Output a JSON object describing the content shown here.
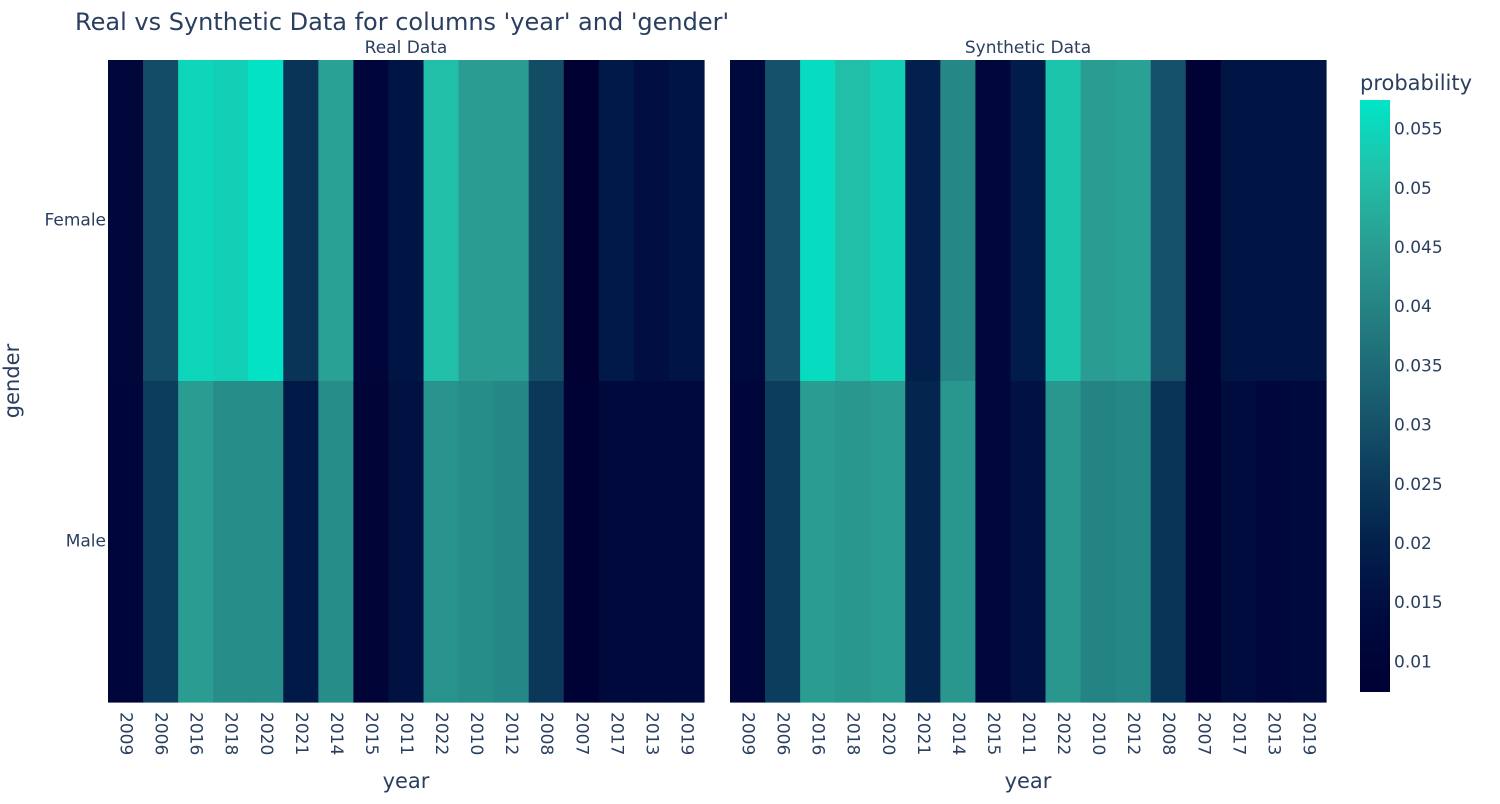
{
  "chart_data": {
    "type": "heatmap",
    "title": "Real vs Synthetic Data for columns 'year' and 'gender'",
    "xlabel": "year",
    "ylabel": "gender",
    "x": [
      "2009",
      "2006",
      "2016",
      "2018",
      "2020",
      "2021",
      "2014",
      "2015",
      "2011",
      "2022",
      "2010",
      "2012",
      "2008",
      "2007",
      "2017",
      "2013",
      "2019"
    ],
    "y": [
      "Female",
      "Male"
    ],
    "colorbar": {
      "title": "probability",
      "range": [
        0.0075,
        0.0575
      ],
      "ticks": [
        0.01,
        0.015,
        0.02,
        0.025,
        0.03,
        0.035,
        0.04,
        0.045,
        0.05,
        0.055
      ],
      "tick_labels": [
        "0.01",
        "0.015",
        "0.02",
        "0.025",
        "0.03",
        "0.035",
        "0.04",
        "0.045",
        "0.05",
        "0.055"
      ],
      "colorscale": [
        "#000033",
        "#000a3d",
        "#02204b",
        "#0d3e5d",
        "#1a5e70",
        "#237d80",
        "#2a9c91",
        "#21c0a8",
        "#00e5c8"
      ]
    },
    "panels": [
      {
        "title": "Real Data",
        "z": [
          [
            0.012,
            0.029,
            0.055,
            0.054,
            0.057,
            0.024,
            0.046,
            0.011,
            0.017,
            0.051,
            0.045,
            0.045,
            0.029,
            0.0075,
            0.018,
            0.015,
            0.017
          ],
          [
            0.011,
            0.026,
            0.045,
            0.042,
            0.042,
            0.018,
            0.042,
            0.01,
            0.016,
            0.043,
            0.042,
            0.041,
            0.025,
            0.009,
            0.013,
            0.013,
            0.013
          ]
        ]
      },
      {
        "title": "Synthetic Data",
        "z": [
          [
            0.013,
            0.03,
            0.056,
            0.051,
            0.054,
            0.02,
            0.041,
            0.012,
            0.019,
            0.052,
            0.045,
            0.046,
            0.03,
            0.008,
            0.017,
            0.017,
            0.017
          ],
          [
            0.011,
            0.026,
            0.045,
            0.044,
            0.045,
            0.021,
            0.044,
            0.012,
            0.016,
            0.044,
            0.04,
            0.041,
            0.024,
            0.008,
            0.014,
            0.012,
            0.013
          ]
        ]
      }
    ]
  }
}
